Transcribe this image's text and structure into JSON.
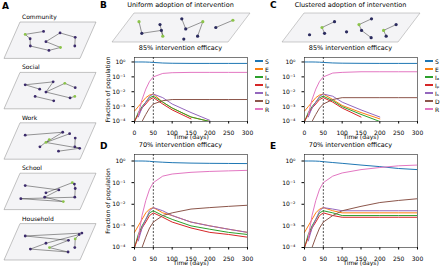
{
  "chart_data": [
    {
      "type": "network",
      "panel": "A",
      "layers": [
        "Community",
        "Social",
        "Work",
        "School",
        "Household"
      ]
    },
    {
      "type": "line",
      "panel": "B",
      "subtitle": "Uniform adoption of intervention",
      "title": "85% intervention efficacy",
      "x_label": "Time (days)",
      "y_label": "Fraction of population",
      "log": "y",
      "legend": "right",
      "intervention_day": 50,
      "xlim": [
        0,
        300
      ],
      "xticks": [
        0,
        50,
        100,
        150,
        200,
        250,
        300
      ],
      "ylim": [
        0.0001,
        2
      ],
      "yticks": [
        {
          "value": 0.0001,
          "label": "10⁻⁴"
        },
        {
          "value": 0.001,
          "label": "10⁻³"
        },
        {
          "value": 0.01,
          "label": "10⁻²"
        },
        {
          "value": 0.1,
          "label": "10⁻¹"
        },
        {
          "value": 1,
          "label": "10⁰"
        }
      ],
      "x": [
        0,
        10,
        20,
        30,
        40,
        50,
        75,
        100,
        150,
        200,
        250,
        300
      ],
      "series": [
        {
          "name": "S",
          "color": "#1f77b4",
          "values": [
            1,
            1,
            1,
            0.99,
            0.97,
            0.93,
            0.85,
            0.82,
            0.8,
            0.8,
            0.8,
            0.8
          ]
        },
        {
          "name": "E",
          "color": "#ff7f0e",
          "values": [
            0.0005,
            0.001,
            0.002,
            0.004,
            0.006,
            0.007,
            0.002,
            0.0008,
            0.0002,
            0.0001,
            null,
            null
          ]
        },
        {
          "name": "Iₐ",
          "color": "#2ca02c",
          "values": [
            0.0001,
            0.0004,
            0.001,
            0.002,
            0.004,
            0.005,
            0.002,
            0.0008,
            0.0002,
            0.0001,
            null,
            null
          ]
        },
        {
          "name": "Iₚ",
          "color": "#d62728",
          "values": [
            0.0001,
            0.0003,
            0.0008,
            0.0015,
            0.003,
            0.004,
            0.0015,
            0.0006,
            0.00015,
            null,
            null,
            null
          ]
        },
        {
          "name": "Iₛ",
          "color": "#9467bd",
          "values": [
            null,
            0.0002,
            0.0008,
            0.002,
            0.005,
            0.007,
            0.004,
            0.0015,
            0.0004,
            0.00012,
            null,
            null
          ]
        },
        {
          "name": "D",
          "color": "#8c564b",
          "values": [
            null,
            null,
            0.0001,
            0.0003,
            0.0008,
            0.0015,
            0.0025,
            0.003,
            0.003,
            0.003,
            0.003,
            0.003
          ]
        },
        {
          "name": "R",
          "color": "#e377c2",
          "values": [
            null,
            0.0003,
            0.003,
            0.015,
            0.05,
            0.1,
            0.17,
            0.19,
            0.2,
            0.2,
            0.2,
            0.2
          ]
        }
      ]
    },
    {
      "type": "line",
      "panel": "C",
      "subtitle": "Clustered adoption of intervention",
      "title": "85% intervention efficacy",
      "x_label": "Time (days)",
      "log": "y",
      "legend": "right",
      "intervention_day": 50,
      "xlim": [
        0,
        300
      ],
      "xticks": [
        0,
        50,
        100,
        150,
        200,
        250,
        300
      ],
      "ylim": [
        0.0001,
        2
      ],
      "yticks": [
        {
          "value": 0.0001,
          "label": "10⁻⁴"
        },
        {
          "value": 0.001,
          "label": "10⁻³"
        },
        {
          "value": 0.01,
          "label": "10⁻²"
        },
        {
          "value": 0.1,
          "label": "10⁻¹"
        },
        {
          "value": 1,
          "label": "10⁰"
        }
      ],
      "x": [
        0,
        10,
        20,
        30,
        40,
        50,
        75,
        100,
        150,
        200,
        250,
        300
      ],
      "series": [
        {
          "name": "S",
          "color": "#1f77b4",
          "values": [
            1,
            1,
            1,
            0.99,
            0.97,
            0.93,
            0.86,
            0.83,
            0.81,
            0.8,
            0.8,
            0.8
          ]
        },
        {
          "name": "E",
          "color": "#ff7f0e",
          "values": [
            0.0005,
            0.001,
            0.002,
            0.004,
            0.006,
            0.007,
            0.003,
            0.0012,
            0.0004,
            0.00015,
            null,
            null
          ]
        },
        {
          "name": "Iₐ",
          "color": "#2ca02c",
          "values": [
            0.0001,
            0.0004,
            0.001,
            0.002,
            0.004,
            0.005,
            0.0025,
            0.001,
            0.0003,
            0.0001,
            null,
            null
          ]
        },
        {
          "name": "Iₚ",
          "color": "#d62728",
          "values": [
            0.0001,
            0.0003,
            0.0008,
            0.0015,
            0.003,
            0.004,
            0.002,
            0.0008,
            0.0002,
            null,
            null,
            null
          ]
        },
        {
          "name": "Iₛ",
          "color": "#9467bd",
          "values": [
            null,
            0.0002,
            0.0008,
            0.002,
            0.005,
            0.007,
            0.005,
            0.002,
            0.0006,
            0.0002,
            null,
            null
          ]
        },
        {
          "name": "D",
          "color": "#8c564b",
          "values": [
            null,
            null,
            0.0001,
            0.0003,
            0.0008,
            0.0015,
            0.003,
            0.004,
            0.004,
            0.004,
            0.004,
            0.004
          ]
        },
        {
          "name": "R",
          "color": "#e377c2",
          "values": [
            null,
            0.0003,
            0.003,
            0.015,
            0.05,
            0.1,
            0.18,
            0.2,
            0.22,
            0.22,
            0.22,
            0.22
          ]
        }
      ]
    },
    {
      "type": "line",
      "panel": "D",
      "title": "70% intervention efficacy",
      "x_label": "Time (days)",
      "y_label": "Fraction of population",
      "log": "y",
      "intervention_day": 50,
      "xlim": [
        0,
        300
      ],
      "xticks": [
        0,
        50,
        100,
        150,
        200,
        250,
        300
      ],
      "ylim": [
        0.0001,
        2
      ],
      "yticks": [
        {
          "value": 0.0001,
          "label": "10⁻⁴"
        },
        {
          "value": 0.001,
          "label": "10⁻³"
        },
        {
          "value": 0.01,
          "label": "10⁻²"
        },
        {
          "value": 0.1,
          "label": "10⁻¹"
        },
        {
          "value": 1,
          "label": "10⁰"
        }
      ],
      "x": [
        0,
        10,
        20,
        30,
        40,
        50,
        75,
        100,
        150,
        200,
        250,
        300
      ],
      "series": [
        {
          "name": "S",
          "color": "#1f77b4",
          "values": [
            1,
            1,
            1,
            0.99,
            0.97,
            0.93,
            0.88,
            0.84,
            0.8,
            0.78,
            0.77,
            0.76
          ]
        },
        {
          "name": "E",
          "color": "#ff7f0e",
          "values": [
            0.0005,
            0.001,
            0.002,
            0.004,
            0.006,
            0.007,
            0.004,
            0.003,
            0.0015,
            0.001,
            0.0007,
            0.0005
          ]
        },
        {
          "name": "Iₐ",
          "color": "#2ca02c",
          "values": [
            0.0001,
            0.0004,
            0.001,
            0.002,
            0.004,
            0.005,
            0.003,
            0.002,
            0.001,
            0.0007,
            0.0005,
            0.0004
          ]
        },
        {
          "name": "Iₚ",
          "color": "#d62728",
          "values": [
            0.0001,
            0.0003,
            0.0008,
            0.0015,
            0.003,
            0.004,
            0.0025,
            0.0015,
            0.0008,
            0.0005,
            0.0004,
            0.0003
          ]
        },
        {
          "name": "Iₛ",
          "color": "#9467bd",
          "values": [
            null,
            0.0002,
            0.0008,
            0.002,
            0.005,
            0.007,
            0.005,
            0.003,
            0.0015,
            0.001,
            0.0007,
            0.0005
          ]
        },
        {
          "name": "D",
          "color": "#8c564b",
          "values": [
            null,
            null,
            0.0001,
            0.0003,
            0.0008,
            0.0015,
            0.003,
            0.004,
            0.006,
            0.007,
            0.008,
            0.009
          ]
        },
        {
          "name": "R",
          "color": "#e377c2",
          "values": [
            null,
            0.0003,
            0.003,
            0.015,
            0.05,
            0.1,
            0.2,
            0.25,
            0.3,
            0.33,
            0.35,
            0.37
          ]
        }
      ]
    },
    {
      "type": "line",
      "panel": "E",
      "title": "70% intervention efficacy",
      "x_label": "Time (days)",
      "log": "y",
      "intervention_day": 50,
      "xlim": [
        0,
        300
      ],
      "xticks": [
        0,
        50,
        100,
        150,
        200,
        250,
        300
      ],
      "ylim": [
        0.0001,
        2
      ],
      "yticks": [
        {
          "value": 0.0001,
          "label": "10⁻⁴"
        },
        {
          "value": 0.001,
          "label": "10⁻³"
        },
        {
          "value": 0.01,
          "label": "10⁻²"
        },
        {
          "value": 0.1,
          "label": "10⁻¹"
        },
        {
          "value": 1,
          "label": "10⁰"
        }
      ],
      "x": [
        0,
        10,
        20,
        30,
        40,
        50,
        75,
        100,
        150,
        200,
        250,
        300
      ],
      "series": [
        {
          "name": "S",
          "color": "#1f77b4",
          "values": [
            1,
            1,
            1,
            0.99,
            0.97,
            0.93,
            0.85,
            0.78,
            0.65,
            0.55,
            0.45,
            0.4
          ]
        },
        {
          "name": "E",
          "color": "#ff7f0e",
          "values": [
            0.0005,
            0.001,
            0.002,
            0.004,
            0.006,
            0.007,
            0.005,
            0.004,
            0.004,
            0.004,
            0.004,
            0.004
          ]
        },
        {
          "name": "Iₐ",
          "color": "#2ca02c",
          "values": [
            0.0001,
            0.0004,
            0.001,
            0.002,
            0.004,
            0.005,
            0.004,
            0.003,
            0.003,
            0.003,
            0.003,
            0.003
          ]
        },
        {
          "name": "Iₚ",
          "color": "#d62728",
          "values": [
            0.0001,
            0.0003,
            0.0008,
            0.0015,
            0.003,
            0.004,
            0.003,
            0.0025,
            0.0025,
            0.0025,
            0.0025,
            0.0025
          ]
        },
        {
          "name": "Iₛ",
          "color": "#9467bd",
          "values": [
            null,
            0.0002,
            0.0008,
            0.002,
            0.005,
            0.007,
            0.006,
            0.005,
            0.005,
            0.005,
            0.005,
            0.005
          ]
        },
        {
          "name": "D",
          "color": "#8c564b",
          "values": [
            null,
            null,
            0.0001,
            0.0003,
            0.0008,
            0.0015,
            0.003,
            0.005,
            0.008,
            0.012,
            0.015,
            0.018
          ]
        },
        {
          "name": "R",
          "color": "#e377c2",
          "values": [
            null,
            0.0003,
            0.003,
            0.015,
            0.05,
            0.1,
            0.2,
            0.28,
            0.4,
            0.5,
            0.6,
            0.65
          ]
        }
      ]
    }
  ]
}
